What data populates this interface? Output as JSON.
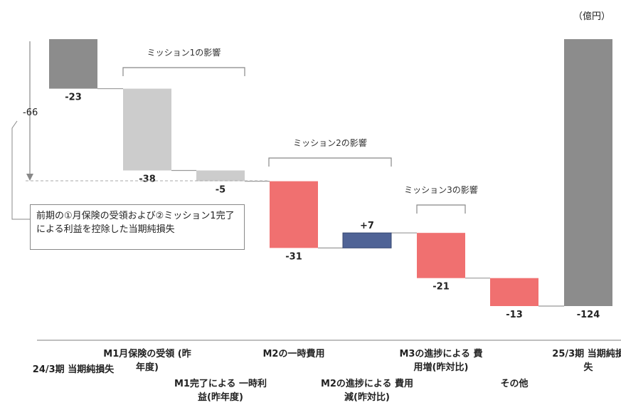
{
  "unit_label": "（億円）",
  "note_text": "前期の①月保険の受領および②ミッション1完了による利益を控除した当期純損失",
  "arrow_label": "-66",
  "groups": [
    {
      "label": "ミッション1の影響"
    },
    {
      "label": "ミッション2の影響"
    },
    {
      "label": "ミッション3の影響"
    }
  ],
  "categories": [
    {
      "label": "24/3期 当期純損失"
    },
    {
      "label": "M1月保険の受領 (昨年度)"
    },
    {
      "label": "M1完了による 一時利益(昨年度)"
    },
    {
      "label": "M2の一時費用"
    },
    {
      "label": "M2の進捗による 費用減(昨対比)"
    },
    {
      "label": "M3の進捗による 費用増(昨対比)"
    },
    {
      "label": "その他"
    },
    {
      "label": "25/3期 当期純損失"
    }
  ],
  "chart_data": {
    "type": "waterfall",
    "unit": "億円",
    "categories": [
      "24/3期 当期純損失",
      "M1月保険の受領 (昨年度)",
      "M1完了による 一時利益(昨年度)",
      "M2の一時費用",
      "M2の進捗による 費用減(昨対比)",
      "M3の進捗による 費用増(昨対比)",
      "その他",
      "25/3期 当期純損失"
    ],
    "values": [
      -23,
      -38,
      -5,
      -31,
      7,
      -21,
      -13,
      -124
    ],
    "labels": [
      "-23",
      "-38",
      "-5",
      "-31",
      "+7",
      "-21",
      "-13",
      "-124"
    ],
    "kinds": [
      "total",
      "delta",
      "delta",
      "delta",
      "delta",
      "delta",
      "delta",
      "total"
    ],
    "ylim": [
      -124,
      0
    ],
    "colors": {
      "total": "#8c8c8c",
      "mission1": "#cccccc",
      "negative": "#f07070",
      "positive": "#4f6396",
      "connector": "#999999"
    },
    "bar_color_keys": [
      "total",
      "mission1",
      "mission1",
      "negative",
      "positive",
      "negative",
      "negative",
      "total"
    ]
  }
}
